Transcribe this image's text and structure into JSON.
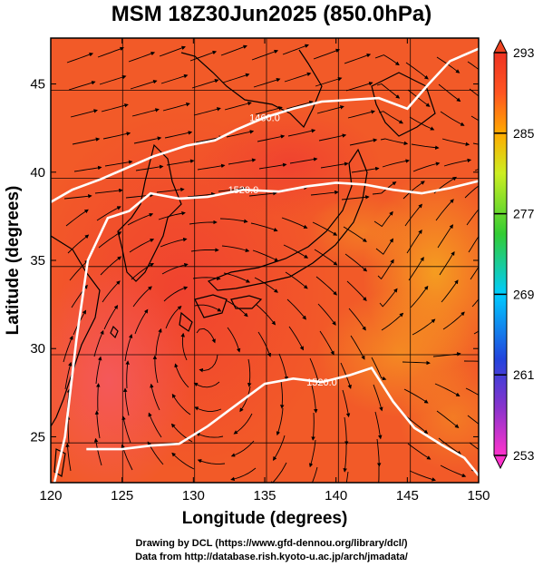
{
  "title": "MSM 18Z30Jun2025 (850.0hPa)",
  "chart_data": {
    "type": "heatmap",
    "xlabel": "Longitude (degrees)",
    "ylabel": "Latitude  (degrees)",
    "xlim": [
      120,
      150
    ],
    "ylim": [
      22.4,
      47.6
    ],
    "x_ticks": [
      "120",
      "125",
      "130",
      "135",
      "140",
      "145",
      "150"
    ],
    "y_ticks": [
      "25",
      "30",
      "35",
      "40",
      "45"
    ],
    "colorbar": {
      "min": 253,
      "max": 293,
      "ticks": [
        "293",
        "285",
        "277",
        "269",
        "261",
        "253"
      ],
      "colors": [
        "#ff33cc",
        "#2244dd",
        "#00ccff",
        "#33cc33",
        "#ccee22",
        "#ffaa00",
        "#ff5522",
        "#ee3322"
      ]
    },
    "contours": [
      {
        "label": "1460.0",
        "points": [
          [
            120,
            38.3
          ],
          [
            121.5,
            39
          ],
          [
            123.5,
            39.6
          ],
          [
            125.5,
            40.3
          ],
          [
            127.2,
            40.9
          ],
          [
            128,
            41.1
          ],
          [
            129.5,
            41.5
          ],
          [
            131.5,
            41.8
          ],
          [
            133,
            42.4
          ],
          [
            135,
            43.1
          ],
          [
            137,
            43.6
          ],
          [
            139,
            44
          ],
          [
            141,
            44.1
          ],
          [
            143,
            44.2
          ],
          [
            145,
            43.6
          ],
          [
            146.5,
            45
          ],
          [
            148,
            46.3
          ],
          [
            150,
            47
          ]
        ]
      },
      {
        "label": "1520.0",
        "points": [
          [
            120,
            21.5
          ],
          [
            121,
            25
          ],
          [
            121.8,
            30.5
          ],
          [
            122.6,
            35
          ],
          [
            124,
            37.4
          ],
          [
            125.5,
            37.8
          ],
          [
            127,
            38.8
          ],
          [
            129,
            38.5
          ],
          [
            131,
            38.6
          ],
          [
            133.5,
            39
          ],
          [
            136,
            38.9
          ],
          [
            138,
            39.2
          ],
          [
            140,
            39.4
          ],
          [
            142,
            39.3
          ],
          [
            144,
            39
          ],
          [
            146,
            38.8
          ],
          [
            148,
            39.1
          ],
          [
            150,
            39.5
          ]
        ]
      },
      {
        "label": "1520.0",
        "points": [
          [
            122.5,
            24.3
          ],
          [
            125,
            24.3
          ],
          [
            127,
            24.5
          ],
          [
            129,
            24.6
          ],
          [
            131,
            25.6
          ],
          [
            133,
            26.8
          ],
          [
            135,
            28
          ],
          [
            137,
            28.3
          ],
          [
            139,
            28.1
          ],
          [
            141,
            28.5
          ],
          [
            142.5,
            28.9
          ],
          [
            144,
            27
          ],
          [
            145.5,
            25.5
          ],
          [
            147.5,
            24.5
          ],
          [
            149,
            23.8
          ],
          [
            150,
            22.8
          ]
        ]
      }
    ]
  },
  "footer": {
    "line1": "Drawing by DCL (https://www.gfd-dennou.org/library/dcl/)",
    "line2": "Data from http://database.rish.kyoto-u.ac.jp/arch/jmadata/"
  }
}
